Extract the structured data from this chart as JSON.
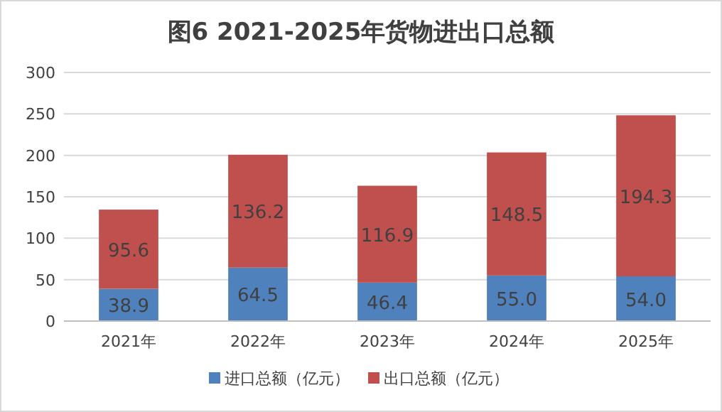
{
  "chart_data": {
    "type": "bar",
    "title": "图6  2021-2025年货物进出口总额",
    "categories": [
      "2021年",
      "2022年",
      "2023年",
      "2024年",
      "2025年"
    ],
    "stacked": true,
    "series": [
      {
        "name": "进口总额（亿元）",
        "color": "#4f81bd",
        "values": [
          38.9,
          64.5,
          46.4,
          55.0,
          54.0
        ]
      },
      {
        "name": "出口总额（亿元）",
        "color": "#c0504d",
        "values": [
          95.6,
          136.2,
          116.9,
          148.5,
          194.3
        ]
      }
    ],
    "value_labels": [
      [
        "38.9",
        "64.5",
        "46.4",
        "55.0",
        "54.0"
      ],
      [
        "95.6",
        "136.2",
        "116.9",
        "148.5",
        "194.3"
      ]
    ],
    "ylim": [
      0,
      300
    ],
    "yticks": [
      0,
      50,
      100,
      150,
      200,
      250,
      300
    ],
    "grid": "y",
    "legend": "bottom"
  }
}
